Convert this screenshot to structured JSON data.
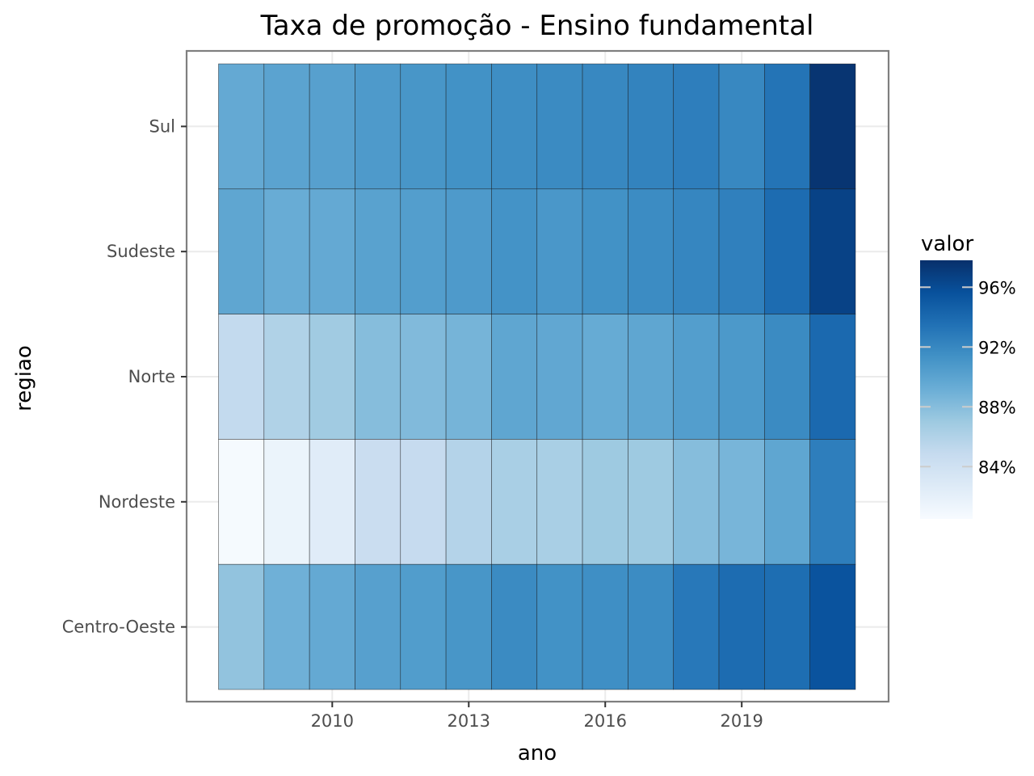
{
  "chart_data": {
    "type": "heatmap",
    "title": "Taxa de promoção - Ensino fundamental",
    "xlabel": "ano",
    "ylabel": "regiao",
    "x": [
      2008,
      2009,
      2010,
      2011,
      2012,
      2013,
      2014,
      2015,
      2016,
      2017,
      2018,
      2019,
      2020,
      2021
    ],
    "x_ticks": [
      2010,
      2013,
      2016,
      2019
    ],
    "xlim": [
      2007.5,
      2021.5
    ],
    "y_categories": [
      "Sul",
      "Sudeste",
      "Norte",
      "Nordeste",
      "Centro-Oeste"
    ],
    "values": {
      "Sul": [
        89.5,
        90.0,
        90.2,
        90.7,
        91.0,
        91.3,
        91.6,
        91.8,
        92.0,
        92.3,
        92.6,
        92.0,
        93.3,
        97.5
      ],
      "Sudeste": [
        89.8,
        89.3,
        89.5,
        90.1,
        90.4,
        90.7,
        91.2,
        90.9,
        91.3,
        91.7,
        92.1,
        92.5,
        93.8,
        96.6
      ],
      "Norte": [
        85.0,
        86.0,
        86.8,
        88.0,
        88.2,
        88.7,
        89.8,
        89.7,
        89.4,
        89.8,
        90.4,
        90.8,
        91.8,
        94.0
      ],
      "Nordeste": [
        80.7,
        81.5,
        82.5,
        84.5,
        84.8,
        85.8,
        86.4,
        86.4,
        87.0,
        87.0,
        88.0,
        88.6,
        89.8,
        92.6
      ],
      "Centro-Oeste": [
        87.5,
        89.0,
        89.5,
        90.2,
        90.5,
        91.0,
        91.8,
        91.3,
        91.5,
        91.7,
        93.0,
        93.8,
        93.7,
        95.5
      ]
    },
    "color_scale": {
      "name": "valor",
      "min": 80.5,
      "max": 97.8,
      "ticks": [
        84,
        88,
        92,
        96
      ],
      "tick_labels": [
        "84%",
        "88%",
        "92%",
        "96%"
      ],
      "palette": [
        "#f7fbff",
        "#deebf7",
        "#c6dbef",
        "#9ecae1",
        "#6baed6",
        "#4292c6",
        "#2171b5",
        "#08519c",
        "#08306b"
      ]
    },
    "grid": true,
    "legend_position": "right"
  }
}
